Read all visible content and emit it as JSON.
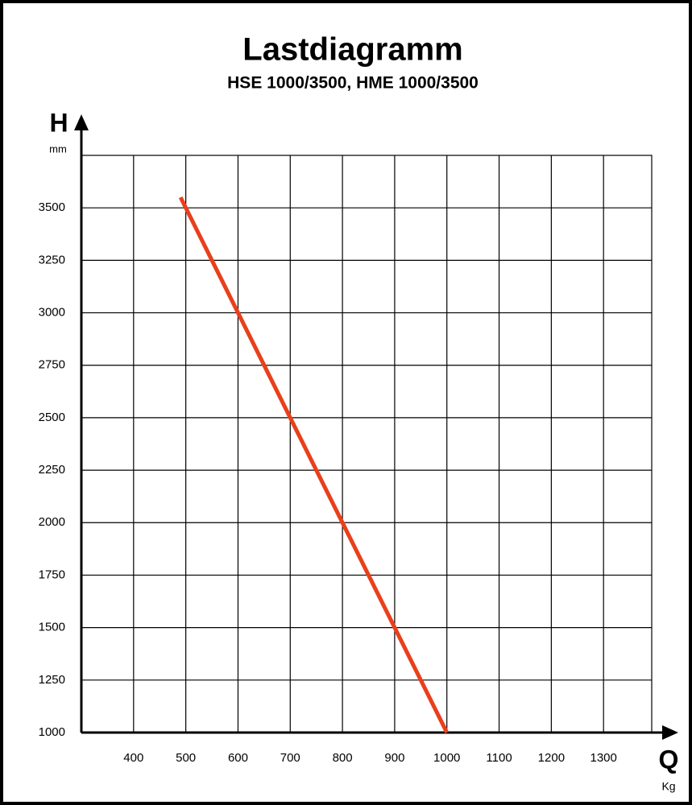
{
  "chart_data": {
    "type": "line",
    "title": "Lastdiagramm",
    "subtitle": "HSE 1000/3500, HME 1000/3500",
    "y_label": "H",
    "y_unit": "mm",
    "x_label": "Q",
    "x_unit": "Kg",
    "x": [
      490,
      600,
      700,
      800,
      900,
      1000
    ],
    "values": [
      3550,
      3000,
      2500,
      2000,
      1500,
      1000
    ],
    "color": "#e8401c",
    "xlim": [
      300,
      1400
    ],
    "xticks": [
      400,
      500,
      600,
      700,
      800,
      900,
      1000,
      1100,
      1200,
      1300
    ],
    "ylim": [
      1000,
      3750
    ],
    "yticks": [
      1000,
      1250,
      1500,
      1750,
      2000,
      2250,
      2500,
      2750,
      3000,
      3250,
      3500
    ],
    "grid": true
  }
}
